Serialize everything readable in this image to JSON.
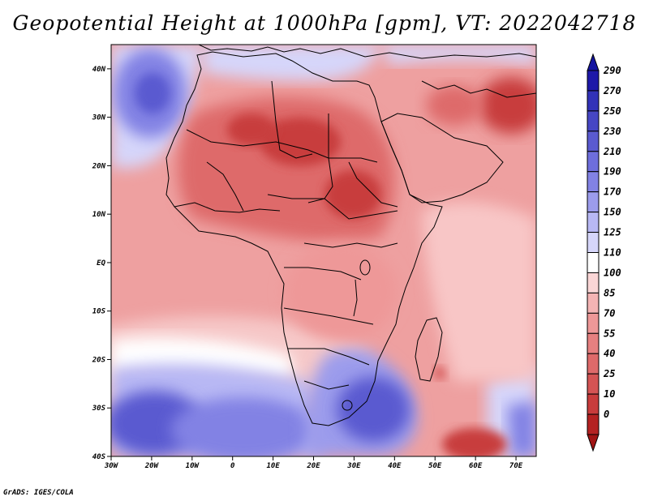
{
  "title": "Geopotential Height at 1000hPa [gpm], VT: 2022042718",
  "footer": "GrADS: IGES/COLA",
  "map": {
    "variable": "Geopotential Height",
    "level": "1000hPa",
    "units": "gpm",
    "valid_time": "2022042718",
    "lon_range": [
      -30,
      75
    ],
    "lat_range": [
      -40,
      45
    ],
    "lat_labels": [
      {
        "lat": 40,
        "text": "40N"
      },
      {
        "lat": 30,
        "text": "30N"
      },
      {
        "lat": 20,
        "text": "20N"
      },
      {
        "lat": 10,
        "text": "10N"
      },
      {
        "lat": 0,
        "text": "EQ"
      },
      {
        "lat": -10,
        "text": "10S"
      },
      {
        "lat": -20,
        "text": "20S"
      },
      {
        "lat": -30,
        "text": "30S"
      },
      {
        "lat": -40,
        "text": "40S"
      }
    ],
    "lon_labels": [
      {
        "lon": -30,
        "text": "30W"
      },
      {
        "lon": -20,
        "text": "20W"
      },
      {
        "lon": -10,
        "text": "10W"
      },
      {
        "lon": 0,
        "text": "0"
      },
      {
        "lon": 10,
        "text": "10E"
      },
      {
        "lon": 20,
        "text": "20E"
      },
      {
        "lon": 30,
        "text": "30E"
      },
      {
        "lon": 40,
        "text": "40E"
      },
      {
        "lon": 50,
        "text": "50E"
      },
      {
        "lon": 60,
        "text": "60E"
      },
      {
        "lon": 70,
        "text": "70E"
      }
    ]
  },
  "colorbar": {
    "levels": [
      {
        "label": "290",
        "color": "#1e18a8"
      },
      {
        "label": "270",
        "color": "#3232b8"
      },
      {
        "label": "250",
        "color": "#4646c4"
      },
      {
        "label": "230",
        "color": "#5a5ad0"
      },
      {
        "label": "210",
        "color": "#6e6edc"
      },
      {
        "label": "190",
        "color": "#8282e4"
      },
      {
        "label": "170",
        "color": "#9c9cec"
      },
      {
        "label": "150",
        "color": "#b8b8f4"
      },
      {
        "label": "125",
        "color": "#d6d6fa"
      },
      {
        "label": "110",
        "color": "#ffffff"
      },
      {
        "label": "100",
        "color": "#fad6d6"
      },
      {
        "label": "85",
        "color": "#f4b4b4"
      },
      {
        "label": "70",
        "color": "#ee9898"
      },
      {
        "label": "55",
        "color": "#e68080"
      },
      {
        "label": "40",
        "color": "#de6a6a"
      },
      {
        "label": "25",
        "color": "#d45454"
      },
      {
        "label": "10",
        "color": "#c83c3c"
      },
      {
        "label": "0",
        "color": "#b42222"
      }
    ],
    "top_arrow_color": "#1414a0",
    "bottom_arrow_color": "#a01414"
  }
}
